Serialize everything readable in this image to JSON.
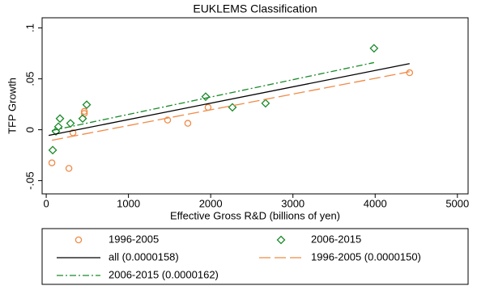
{
  "chart_data": {
    "type": "scatter",
    "title": "EUKLEMS Classification",
    "x_label": "Effective Gross R&D (billions of yen)",
    "y_label": "TFP Growth",
    "xlim": [
      -50,
      5130
    ],
    "ylim": [
      -0.063,
      0.11
    ],
    "xticks": [
      0,
      1000,
      2000,
      3000,
      4000,
      5000
    ],
    "yticks": [
      {
        "value": -0.05,
        "label": "-.05"
      },
      0,
      {
        "value": 0.05,
        "label": ".05"
      },
      {
        "value": 0.1,
        "label": ".1"
      }
    ],
    "grid": false,
    "series": [
      {
        "name": "1996-2005",
        "color": "#f08a46",
        "marker": "circle",
        "x": [
          69,
          276,
          325,
          463,
          463,
          1476,
          1722,
          1968,
          4419
        ],
        "values": [
          -0.0325,
          -0.038,
          -0.003,
          0.018,
          0.016,
          0.0095,
          0.0063,
          0.022,
          0.056
        ]
      },
      {
        "name": "2006-2015",
        "color": "#1a8a2a",
        "marker": "diamond",
        "x": [
          79,
          118,
          148,
          167,
          295,
          443,
          492,
          1939,
          2264,
          2667,
          3986
        ],
        "values": [
          -0.02,
          -0.0016,
          0.003,
          0.011,
          0.0063,
          0.011,
          0.0246,
          0.0325,
          0.022,
          0.026,
          0.08
        ]
      },
      {
        "name": "all (0.0000158)",
        "color": "#000000",
        "line": "solid",
        "x": [
          30,
          4419
        ],
        "values": [
          -0.0056,
          0.065
        ]
      },
      {
        "name": "1996-2005 (0.0000150)",
        "color": "#f08a46",
        "line": "longdash",
        "x": [
          69,
          4419
        ],
        "values": [
          -0.0103,
          0.057
        ]
      },
      {
        "name": "2006-2015 (0.0000162)",
        "color": "#1a8a2a",
        "line": "dashdot",
        "x": [
          69,
          3986
        ],
        "values": [
          -0.0008,
          0.066
        ]
      }
    ]
  }
}
